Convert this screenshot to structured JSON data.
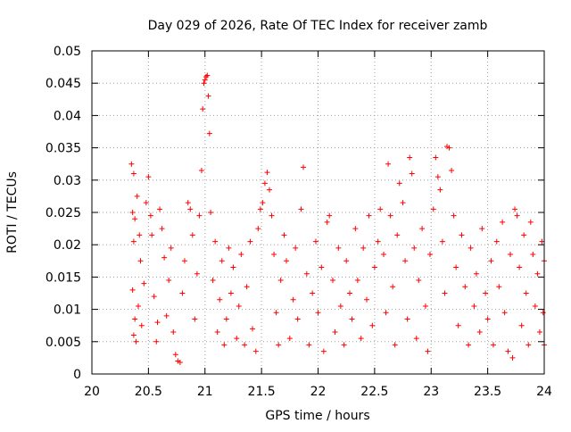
{
  "chart_data": {
    "type": "scatter",
    "title": "Day 029 of 2026, Rate Of TEC Index for receiver zamb",
    "xlabel": "GPS time / hours",
    "ylabel": "ROTI / TECUs",
    "xlim": [
      20,
      24
    ],
    "ylim": [
      0,
      0.05
    ],
    "x_ticks": [
      20,
      20.5,
      21,
      21.5,
      22,
      22.5,
      23,
      23.5,
      24
    ],
    "x_tick_labels": [
      "20",
      "20.5",
      "21",
      "21.5",
      "22",
      "22.5",
      "23",
      "23.5",
      "24"
    ],
    "y_ticks": [
      0,
      0.005,
      0.01,
      0.015,
      0.02,
      0.025,
      0.03,
      0.035,
      0.04,
      0.045,
      0.05
    ],
    "y_tick_labels": [
      "0",
      "0.005",
      "0.01",
      "0.015",
      "0.02",
      "0.025",
      "0.03",
      "0.035",
      "0.04",
      "0.045",
      "0.05"
    ],
    "grid": true,
    "marker": "plus",
    "color": "#ff0000",
    "series": [
      {
        "name": "ROTI",
        "points": [
          [
            20.35,
            0.0325
          ],
          [
            20.37,
            0.031
          ],
          [
            20.36,
            0.025
          ],
          [
            20.38,
            0.024
          ],
          [
            20.37,
            0.0205
          ],
          [
            20.36,
            0.013
          ],
          [
            20.38,
            0.0085
          ],
          [
            20.37,
            0.006
          ],
          [
            20.39,
            0.005
          ],
          [
            20.4,
            0.0275
          ],
          [
            20.42,
            0.0215
          ],
          [
            20.43,
            0.0175
          ],
          [
            20.41,
            0.0105
          ],
          [
            20.44,
            0.0075
          ],
          [
            20.46,
            0.014
          ],
          [
            20.48,
            0.0265
          ],
          [
            20.5,
            0.0305
          ],
          [
            20.52,
            0.0245
          ],
          [
            20.53,
            0.0215
          ],
          [
            20.55,
            0.012
          ],
          [
            20.57,
            0.005
          ],
          [
            20.58,
            0.008
          ],
          [
            20.6,
            0.0255
          ],
          [
            20.62,
            0.0225
          ],
          [
            20.64,
            0.018
          ],
          [
            20.66,
            0.009
          ],
          [
            20.68,
            0.0145
          ],
          [
            20.7,
            0.0195
          ],
          [
            20.72,
            0.0065
          ],
          [
            20.74,
            0.003
          ],
          [
            20.76,
            0.002
          ],
          [
            20.78,
            0.0018
          ],
          [
            20.8,
            0.0125
          ],
          [
            20.82,
            0.0175
          ],
          [
            20.85,
            0.0265
          ],
          [
            20.87,
            0.0255
          ],
          [
            20.89,
            0.0215
          ],
          [
            20.91,
            0.0085
          ],
          [
            20.93,
            0.0155
          ],
          [
            20.95,
            0.0245
          ],
          [
            20.97,
            0.0315
          ],
          [
            20.98,
            0.041
          ],
          [
            20.99,
            0.045
          ],
          [
            21.0,
            0.0455
          ],
          [
            21.01,
            0.046
          ],
          [
            21.02,
            0.0462
          ],
          [
            21.03,
            0.043
          ],
          [
            21.04,
            0.0372
          ],
          [
            21.05,
            0.025
          ],
          [
            21.07,
            0.0145
          ],
          [
            21.09,
            0.0205
          ],
          [
            21.11,
            0.0065
          ],
          [
            21.13,
            0.0115
          ],
          [
            21.15,
            0.0175
          ],
          [
            21.17,
            0.0045
          ],
          [
            21.19,
            0.0085
          ],
          [
            21.21,
            0.0195
          ],
          [
            21.23,
            0.0125
          ],
          [
            21.25,
            0.0165
          ],
          [
            21.28,
            0.0055
          ],
          [
            21.3,
            0.0105
          ],
          [
            21.32,
            0.0185
          ],
          [
            21.35,
            0.0045
          ],
          [
            21.37,
            0.0135
          ],
          [
            21.4,
            0.0205
          ],
          [
            21.42,
            0.007
          ],
          [
            21.45,
            0.0035
          ],
          [
            21.47,
            0.0225
          ],
          [
            21.49,
            0.0255
          ],
          [
            21.51,
            0.0265
          ],
          [
            21.53,
            0.0295
          ],
          [
            21.55,
            0.0312
          ],
          [
            21.57,
            0.0285
          ],
          [
            21.59,
            0.0245
          ],
          [
            21.61,
            0.0185
          ],
          [
            21.63,
            0.0095
          ],
          [
            21.65,
            0.0045
          ],
          [
            21.67,
            0.0145
          ],
          [
            21.7,
            0.0215
          ],
          [
            21.72,
            0.0175
          ],
          [
            21.75,
            0.0055
          ],
          [
            21.78,
            0.0115
          ],
          [
            21.8,
            0.0195
          ],
          [
            21.82,
            0.0085
          ],
          [
            21.85,
            0.0255
          ],
          [
            21.87,
            0.032
          ],
          [
            21.9,
            0.0155
          ],
          [
            21.92,
            0.0045
          ],
          [
            21.95,
            0.0125
          ],
          [
            21.98,
            0.0205
          ],
          [
            22.0,
            0.0095
          ],
          [
            22.03,
            0.0165
          ],
          [
            22.05,
            0.0035
          ],
          [
            22.08,
            0.0235
          ],
          [
            22.1,
            0.0245
          ],
          [
            22.13,
            0.0145
          ],
          [
            22.15,
            0.0065
          ],
          [
            22.18,
            0.0195
          ],
          [
            22.2,
            0.0105
          ],
          [
            22.23,
            0.0045
          ],
          [
            22.25,
            0.0175
          ],
          [
            22.28,
            0.0125
          ],
          [
            22.3,
            0.0085
          ],
          [
            22.33,
            0.0225
          ],
          [
            22.35,
            0.0145
          ],
          [
            22.38,
            0.0055
          ],
          [
            22.4,
            0.0195
          ],
          [
            22.43,
            0.0115
          ],
          [
            22.45,
            0.0245
          ],
          [
            22.48,
            0.0075
          ],
          [
            22.5,
            0.0165
          ],
          [
            22.53,
            0.0205
          ],
          [
            22.55,
            0.0255
          ],
          [
            22.58,
            0.0185
          ],
          [
            22.6,
            0.0095
          ],
          [
            22.62,
            0.0325
          ],
          [
            22.64,
            0.0245
          ],
          [
            22.66,
            0.0135
          ],
          [
            22.68,
            0.0045
          ],
          [
            22.7,
            0.0215
          ],
          [
            22.72,
            0.0295
          ],
          [
            22.75,
            0.0265
          ],
          [
            22.77,
            0.0175
          ],
          [
            22.79,
            0.0085
          ],
          [
            22.81,
            0.0335
          ],
          [
            22.83,
            0.031
          ],
          [
            22.85,
            0.0195
          ],
          [
            22.87,
            0.0055
          ],
          [
            22.89,
            0.0145
          ],
          [
            22.92,
            0.0225
          ],
          [
            22.95,
            0.0105
          ],
          [
            22.97,
            0.0035
          ],
          [
            22.99,
            0.0185
          ],
          [
            23.02,
            0.0255
          ],
          [
            23.04,
            0.0335
          ],
          [
            23.06,
            0.0305
          ],
          [
            23.08,
            0.0285
          ],
          [
            23.1,
            0.0205
          ],
          [
            23.12,
            0.0125
          ],
          [
            23.14,
            0.0352
          ],
          [
            23.16,
            0.035
          ],
          [
            23.18,
            0.0315
          ],
          [
            23.2,
            0.0245
          ],
          [
            23.22,
            0.0165
          ],
          [
            23.24,
            0.0075
          ],
          [
            23.27,
            0.0215
          ],
          [
            23.3,
            0.0135
          ],
          [
            23.33,
            0.0045
          ],
          [
            23.35,
            0.0195
          ],
          [
            23.38,
            0.0105
          ],
          [
            23.4,
            0.0155
          ],
          [
            23.43,
            0.0065
          ],
          [
            23.45,
            0.0225
          ],
          [
            23.48,
            0.0125
          ],
          [
            23.5,
            0.0085
          ],
          [
            23.53,
            0.0175
          ],
          [
            23.55,
            0.0045
          ],
          [
            23.58,
            0.0205
          ],
          [
            23.6,
            0.0135
          ],
          [
            23.63,
            0.0235
          ],
          [
            23.65,
            0.0095
          ],
          [
            23.68,
            0.0035
          ],
          [
            23.7,
            0.0185
          ],
          [
            23.72,
            0.0025
          ],
          [
            23.74,
            0.0255
          ],
          [
            23.76,
            0.0245
          ],
          [
            23.78,
            0.0165
          ],
          [
            23.8,
            0.0075
          ],
          [
            23.82,
            0.0215
          ],
          [
            23.84,
            0.0125
          ],
          [
            23.86,
            0.0045
          ],
          [
            23.88,
            0.0235
          ],
          [
            23.9,
            0.0185
          ],
          [
            23.92,
            0.0105
          ],
          [
            23.94,
            0.0155
          ],
          [
            23.96,
            0.0065
          ],
          [
            23.98,
            0.0205
          ],
          [
            23.99,
            0.0095
          ],
          [
            24.0,
            0.0045
          ],
          [
            24.0,
            0.0175
          ]
        ]
      }
    ]
  }
}
